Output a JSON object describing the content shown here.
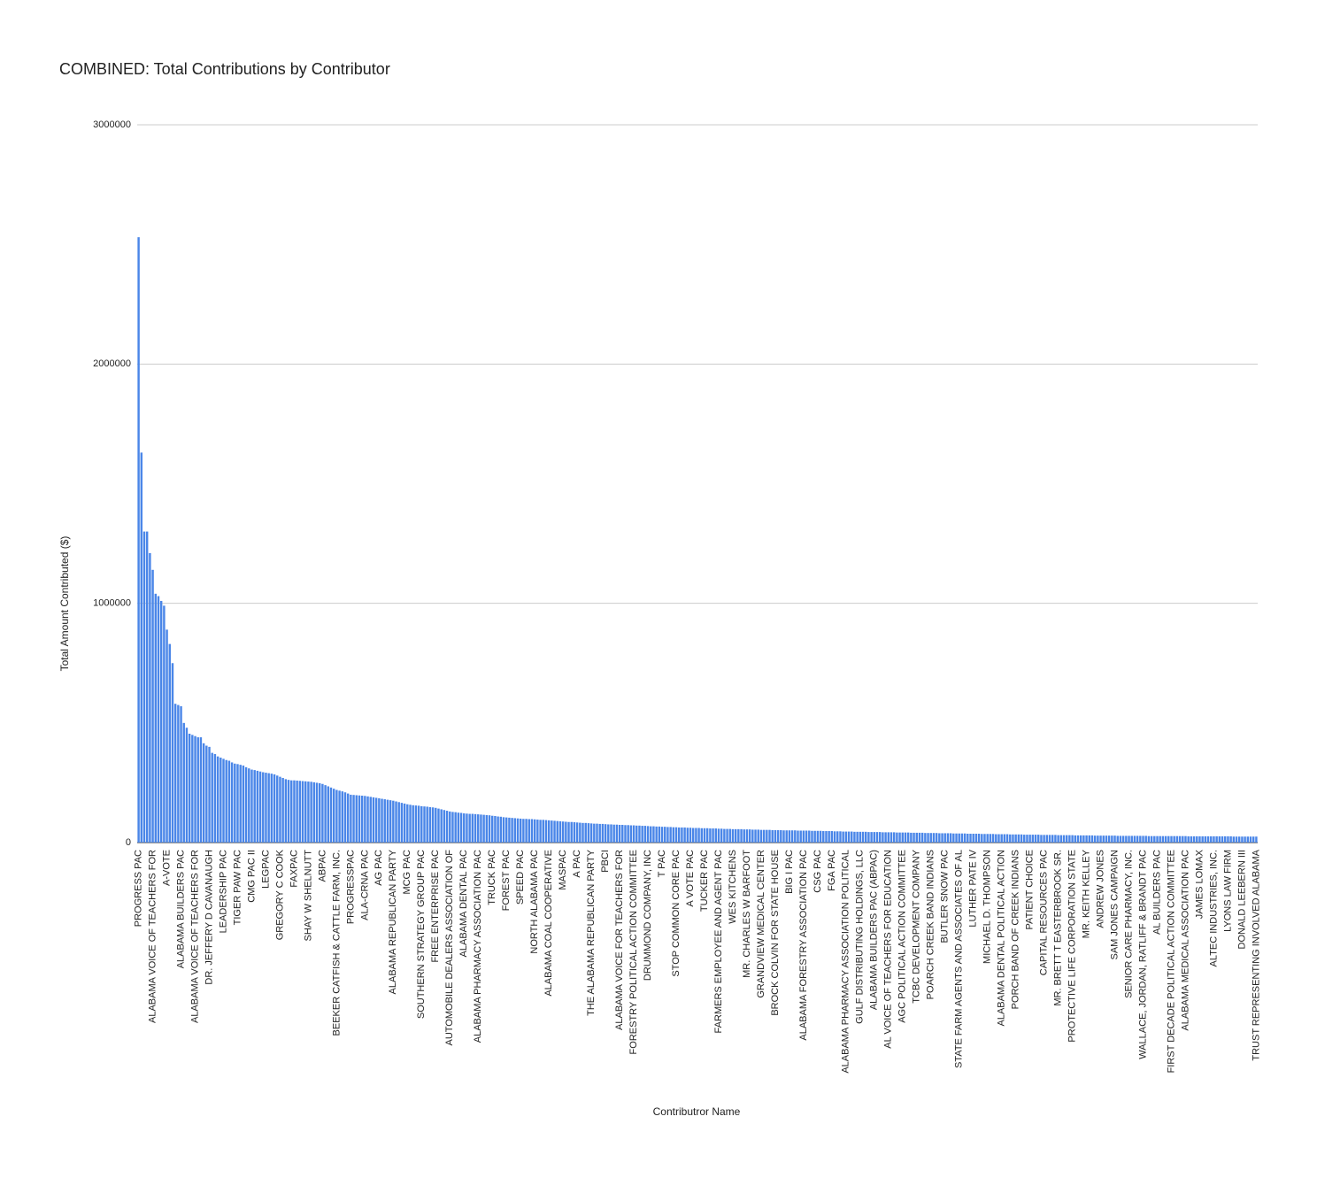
{
  "chart_data": {
    "type": "bar",
    "title": "COMBINED: Total Contributions by Contributor",
    "x_label": "Contributror Name",
    "y_label": "Total Amount Contributed ($)",
    "color": "#4a86e8",
    "grid": true,
    "ylim": [
      0,
      3000000
    ],
    "yticks": [
      0,
      1000000,
      2000000,
      3000000
    ],
    "categories": [
      "PROGRESS PAC",
      null,
      null,
      null,
      null,
      "ALABAMA VOICE OF TEACHERS FOR",
      null,
      null,
      null,
      null,
      "A-VOTE",
      null,
      null,
      null,
      null,
      "ALABAMA BUILDERS PAC",
      null,
      null,
      null,
      null,
      "ALABAMA VOICE OF TEACHERS FOR",
      null,
      null,
      null,
      null,
      "DR. JEFFERY D CAVANAUGH",
      null,
      null,
      null,
      null,
      "LEADERSHIP PAC",
      null,
      null,
      null,
      null,
      "TIGER PAW PAC",
      null,
      null,
      null,
      null,
      "CMG PAC II",
      null,
      null,
      null,
      null,
      "LEGPAC",
      null,
      null,
      null,
      null,
      "GREGORY C COOK",
      null,
      null,
      null,
      null,
      "FAXPAC",
      null,
      null,
      null,
      null,
      "SHAY W SHELNUTT",
      null,
      null,
      null,
      null,
      "ABPAC",
      null,
      null,
      null,
      null,
      "BEEKER CATFISH & CATTLE FARM, INC.",
      null,
      null,
      null,
      null,
      "PROGRESSPAC",
      null,
      null,
      null,
      null,
      "ALA-CRNA PAC",
      null,
      null,
      null,
      null,
      "AG PAC",
      null,
      null,
      null,
      null,
      "ALABAMA REPUBLICAN PARTY",
      null,
      null,
      null,
      null,
      "MCG PAC",
      null,
      null,
      null,
      null,
      "SOUTHERN STRATEGY GROUP PAC",
      null,
      null,
      null,
      null,
      "FREE ENTERPRISE PAC",
      null,
      null,
      null,
      null,
      "AUTOMOBILE DEALERS ASSOCIATION OF",
      null,
      null,
      null,
      null,
      "ALABAMA DENTAL PAC",
      null,
      null,
      null,
      null,
      "ALABAMA PHARMACY ASSOCIATION PAC",
      null,
      null,
      null,
      null,
      "TRUCK PAC",
      null,
      null,
      null,
      null,
      "FOREST PAC",
      null,
      null,
      null,
      null,
      "SPEED PAC",
      null,
      null,
      null,
      null,
      "NORTH ALABAMA PAC",
      null,
      null,
      null,
      null,
      "ALABAMA COAL COOPERATIVE",
      null,
      null,
      null,
      null,
      "MASPAC",
      null,
      null,
      null,
      null,
      "A PAC",
      null,
      null,
      null,
      null,
      "THE ALABAMA REPUBLICAN PARTY",
      null,
      null,
      null,
      null,
      "PBCI",
      null,
      null,
      null,
      null,
      "ALABAMA VOICE FOR TEACHERS FOR",
      null,
      null,
      null,
      null,
      "FORESTRY POLITICAL ACTION COMMITTEE",
      null,
      null,
      null,
      null,
      "DRUMMOND COMPANY, INC",
      null,
      null,
      null,
      null,
      "T PAC",
      null,
      null,
      null,
      null,
      "STOP COMMON CORE PAC",
      null,
      null,
      null,
      null,
      "A VOTE PAC",
      null,
      null,
      null,
      null,
      "TUCKER PAC",
      null,
      null,
      null,
      null,
      "FARMERS EMPLOYEE AND AGENT PAC",
      null,
      null,
      null,
      null,
      "WES KITCHENS",
      null,
      null,
      null,
      null,
      "MR. CHARLES W BARFOOT",
      null,
      null,
      null,
      null,
      "GRANDVIEW MEDICAL CENTER",
      null,
      null,
      null,
      null,
      "BROCK COLVIN FOR STATE HOUSE",
      null,
      null,
      null,
      null,
      "BIG I PAC",
      null,
      null,
      null,
      null,
      "ALABAMA FORESTRY ASSOCIATION PAC",
      null,
      null,
      null,
      null,
      "CSG PAC",
      null,
      null,
      null,
      null,
      "FGA PAC",
      null,
      null,
      null,
      null,
      "ALABAMA PHARMACY ASSOCIATION POLITICAL",
      null,
      null,
      null,
      null,
      "GULF DISTRIBUTING HOLDINGS, LLC",
      null,
      null,
      null,
      null,
      "ALABAMA BUILDERS PAC (ABPAC)",
      null,
      null,
      null,
      null,
      "AL VOICE OF TEACHERS FOR EDUCATION",
      null,
      null,
      null,
      null,
      "AGC POLITICAL ACTION COMMITTEE",
      null,
      null,
      null,
      null,
      "TCBC DEVELOPMENT COMPANY",
      null,
      null,
      null,
      null,
      "POARCH CREEK BAND INDIANS",
      null,
      null,
      null,
      null,
      "BUTLER SNOW PAC",
      null,
      null,
      null,
      null,
      "STATE FARM AGENTS AND ASSOCIATES OF AL",
      null,
      null,
      null,
      null,
      "LUTHER PATE IV",
      null,
      null,
      null,
      null,
      "MICHAEL D. THOMPSON",
      null,
      null,
      null,
      null,
      "ALABAMA DENTAL POLITICAL ACTION",
      null,
      null,
      null,
      null,
      "PORCH BAND OF CREEK INDIANS",
      null,
      null,
      null,
      null,
      "PATIENT CHOICE",
      null,
      null,
      null,
      null,
      "CAPITAL RESOURCES PAC",
      null,
      null,
      null,
      null,
      "MR. BRETT T EASTERBROOK SR.",
      null,
      null,
      null,
      null,
      "PROTECTIVE LIFE CORPORATION STATE",
      null,
      null,
      null,
      null,
      "MR. KEITH KELLEY",
      null,
      null,
      null,
      null,
      "ANDREW JONES",
      null,
      null,
      null,
      null,
      "SAM JONES CAMPAIGN",
      null,
      null,
      null,
      null,
      "SENIOR CARE PHARMACY, INC.",
      null,
      null,
      null,
      null,
      "WALLACE, JORDAN, RATLIFF & BRANDT PAC",
      null,
      null,
      null,
      null,
      "AL BUILDERS PAC",
      null,
      null,
      null,
      null,
      "FIRST DECADE POLITICAL ACTION COMMITTEE",
      null,
      null,
      null,
      null,
      "ALABAMA MEDICAL ASSOCIATION PAC",
      null,
      null,
      null,
      null,
      "JAMES LOMAX",
      null,
      null,
      null,
      null,
      "ALTEC INDUSTRIES, INC.",
      null,
      null,
      null,
      null,
      "LYONS LAW FIRM",
      null,
      null,
      null,
      null,
      "DONALD LEEBERN III",
      null,
      null,
      null,
      null,
      "TRUST REPRESENTING INVOLVED ALABAMA"
    ],
    "values": [
      2530000,
      1630000,
      1300000,
      1300000,
      1210000,
      1140000,
      1040000,
      1030000,
      1010000,
      990000,
      890000,
      830000,
      750000,
      580000,
      575000,
      570000,
      500000,
      480000,
      455000,
      450000,
      445000,
      440000,
      440000,
      415000,
      405000,
      400000,
      375000,
      370000,
      360000,
      355000,
      350000,
      345000,
      342000,
      335000,
      330000,
      328000,
      325000,
      322000,
      315000,
      310000,
      305000,
      303000,
      300000,
      297000,
      294000,
      292000,
      290000,
      288000,
      285000,
      280000,
      275000,
      270000,
      265000,
      262000,
      260000,
      260000,
      259000,
      258000,
      257000,
      256000,
      255000,
      254000,
      252000,
      250000,
      248000,
      245000,
      240000,
      235000,
      230000,
      225000,
      220000,
      217000,
      214000,
      210000,
      205000,
      200000,
      199000,
      198000,
      197000,
      196000,
      195000,
      193000,
      191000,
      189000,
      187000,
      185000,
      183000,
      181000,
      179000,
      177000,
      175000,
      172000,
      169000,
      166000,
      163000,
      160000,
      158000,
      156000,
      155000,
      154000,
      152000,
      151000,
      150000,
      148000,
      147000,
      145000,
      142000,
      139000,
      136000,
      133000,
      130000,
      128000,
      127000,
      125000,
      124000,
      122000,
      121000,
      120000,
      120000,
      119000,
      118000,
      117000,
      116000,
      115000,
      114000,
      112000,
      111000,
      109000,
      108000,
      106000,
      105000,
      104000,
      103000,
      102000,
      101000,
      100000,
      99000,
      99000,
      98000,
      98000,
      97000,
      96000,
      95000,
      95000,
      94000,
      93000,
      92000,
      91000,
      90000,
      89000,
      88000,
      87000,
      86000,
      86000,
      85000,
      84000,
      83000,
      82000,
      82000,
      81000,
      80000,
      79000,
      79000,
      78000,
      78000,
      77000,
      76000,
      76000,
      75000,
      75000,
      74000,
      74000,
      73000,
      73000,
      72000,
      72000,
      71000,
      71000,
      70000,
      70000,
      69000,
      68000,
      68000,
      67000,
      67000,
      66000,
      66000,
      65000,
      65000,
      64000,
      64000,
      63000,
      63000,
      63000,
      62000,
      62000,
      61000,
      61000,
      61000,
      60000,
      60000,
      60000,
      59000,
      59000,
      59000,
      58000,
      58000,
      57000,
      57000,
      57000,
      56000,
      56000,
      56000,
      56000,
      55000,
      55000,
      55000,
      54000,
      54000,
      54000,
      53000,
      53000,
      53000,
      53000,
      52000,
      52000,
      52000,
      52000,
      51000,
      51000,
      51000,
      51000,
      51000,
      50000,
      50000,
      50000,
      50000,
      50000,
      49000,
      49000,
      49000,
      49000,
      48000,
      48000,
      48000,
      48000,
      47000,
      47000,
      47000,
      46000,
      46000,
      46000,
      46000,
      45000,
      45000,
      45000,
      45000,
      45000,
      44000,
      44000,
      44000,
      44000,
      44000,
      43000,
      43000,
      43000,
      43000,
      43000,
      42000,
      42000,
      42000,
      42000,
      42000,
      41000,
      41000,
      41000,
      41000,
      41000,
      40000,
      40000,
      40000,
      40000,
      40000,
      39000,
      39000,
      39000,
      39000,
      39000,
      38000,
      38000,
      38000,
      38000,
      38000,
      37000,
      37000,
      37000,
      37000,
      37000,
      36000,
      36000,
      36000,
      36000,
      36000,
      35000,
      35000,
      35000,
      35000,
      35000,
      34000,
      34000,
      34000,
      34000,
      34000,
      33000,
      33000,
      33000,
      33000,
      33000,
      33000,
      32000,
      32000,
      32000,
      32000,
      32000,
      32000,
      31000,
      31000,
      31000,
      31000,
      31000,
      31000,
      30000,
      30000,
      30000,
      30000,
      30000,
      30000,
      30000,
      29000,
      29000,
      29000,
      29000,
      29000,
      29000,
      29000,
      29000,
      28000,
      28000,
      28000,
      28000,
      28000,
      28000,
      28000,
      28000,
      28000,
      28000,
      28000,
      27000,
      27000,
      27000,
      27000,
      27000,
      27000,
      27000,
      27000,
      27000,
      27000,
      27000,
      27000,
      27000,
      27000,
      26000,
      26000,
      26000,
      26000,
      26000,
      26000,
      26000,
      26000,
      26000,
      26000,
      26000,
      26000,
      26000,
      26000,
      26000,
      26000,
      25000,
      25000,
      25000,
      25000,
      25000,
      25000,
      25000,
      25000,
      25000
    ]
  }
}
